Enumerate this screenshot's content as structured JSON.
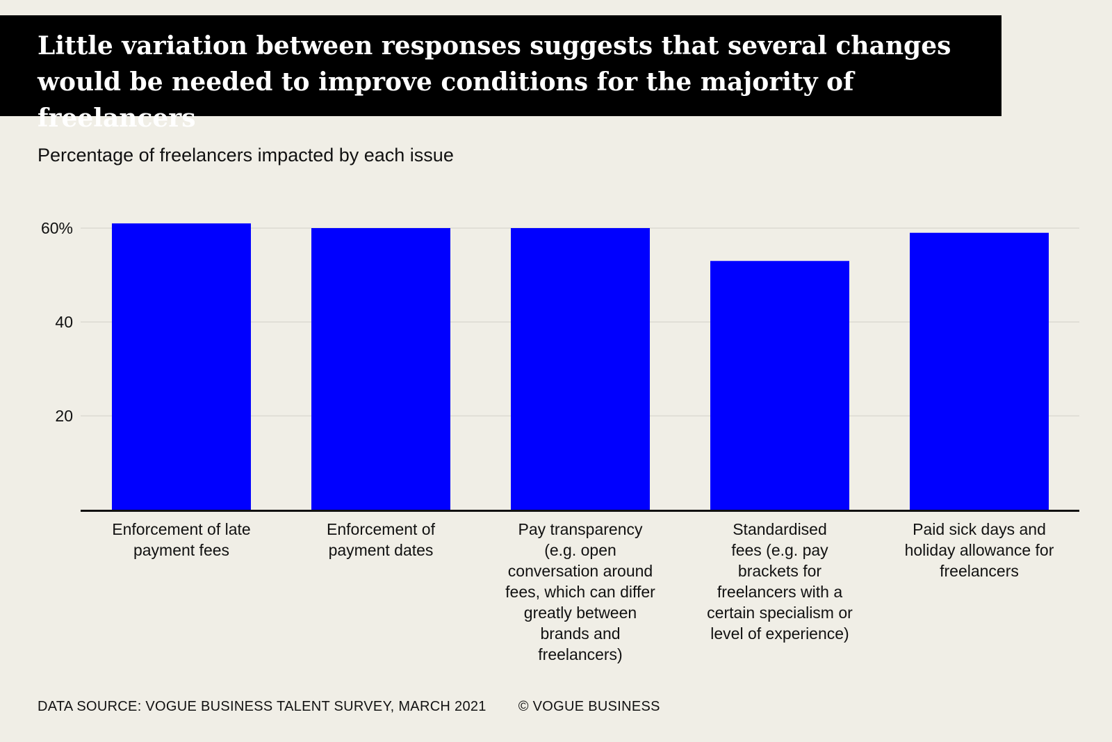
{
  "title": "Little variation between responses suggests that several changes would be needed to improve conditions for the majority of freelancers",
  "subtitle": "Percentage of freelancers impacted by each issue",
  "footer": {
    "source": "DATA SOURCE: VOGUE BUSINESS TALENT SURVEY, MARCH 2021",
    "credit": "© VOGUE BUSINESS"
  },
  "colors": {
    "bar": "#0000ff",
    "background": "#f0eee6",
    "title_background": "#000000",
    "gridline": "#dcdad2",
    "axis": "#111111"
  },
  "chart_data": {
    "type": "bar",
    "title": "Little variation between responses suggests that several changes would be needed to improve conditions for the majority of freelancers",
    "subtitle": "Percentage of freelancers impacted by each issue",
    "categories": [
      "Enforcement of late payment fees",
      "Enforcement of payment dates",
      "Pay transparency (e.g. open conversation around fees, which can differ greatly between brands and freelancers)",
      "Standardised fees (e.g. pay brackets for freelancers with a certain specialism or level of experience)",
      "Paid sick days and holiday allowance for freelancers"
    ],
    "category_lines": [
      [
        "Enforcement of late",
        "payment fees"
      ],
      [
        "Enforcement of",
        "payment dates"
      ],
      [
        "Pay transparency",
        "(e.g. open",
        "conversation around",
        "fees, which can differ",
        "greatly between",
        "brands and",
        "freelancers)"
      ],
      [
        "Standardised",
        "fees (e.g. pay",
        "brackets for",
        "freelancers with a",
        "certain specialism or",
        "level of experience)"
      ],
      [
        "Paid sick days and",
        "holiday allowance for",
        "freelancers"
      ]
    ],
    "values": [
      61,
      60,
      60,
      53,
      59
    ],
    "yticks": [
      {
        "value": 20,
        "label": "20"
      },
      {
        "value": 40,
        "label": "40"
      },
      {
        "value": 60,
        "label": "60%"
      }
    ],
    "xlabel": "",
    "ylabel": "",
    "ylim": [
      0,
      60
    ],
    "grid": true,
    "legend": "none"
  }
}
